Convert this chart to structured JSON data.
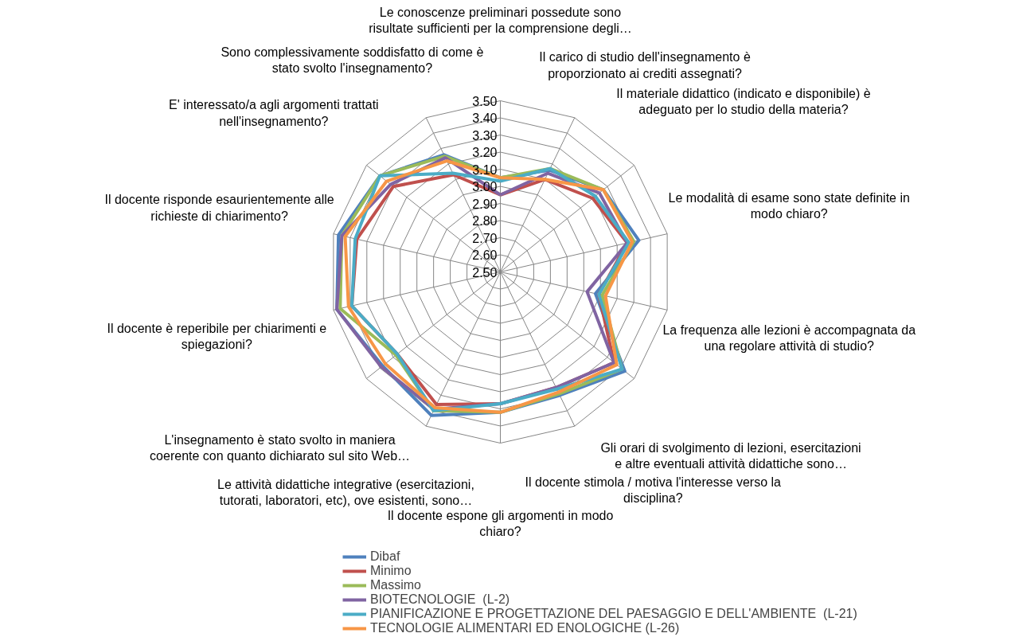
{
  "chart_data": {
    "type": "radar",
    "categories": [
      "Le conoscenze preliminari possedute sono\nrisultate sufficienti per la comprensione degli…",
      "Il carico di studio dell'insegnamento è\nproporzionato ai crediti assegnati?",
      "Il materiale didattico (indicato e disponibile) è\nadeguato per lo studio della materia?",
      "Le modalità di esame sono state definite in\nmodo chiaro?",
      "La frequenza alle lezioni è accompagnata da\nuna regolare attività di studio?",
      "Gli orari di svolgimento di lezioni, esercitazioni\ne altre eventuali attività didattiche sono…",
      "Il docente stimola / motiva l'interesse verso la\ndisciplina?",
      "Il docente espone gli argomenti in modo\nchiaro?",
      "Le attività didattiche integrative (esercitazioni,\ntutorati, laboratori, etc), ove esistenti, sono…",
      "L'insegnamento è stato svolto in maniera\ncoerente con quanto dichiarato sul sito Web…",
      "Il docente è reperibile per chiarimenti e\nspiegazioni?",
      "Il docente risponde esaurientemente alle\nrichieste di chiarimento?",
      "E' interessato/a agli argomenti trattati\nnell'insegnamento?",
      "Sono complessivamente soddisfatto di come è\nstato svolto l'insegnamento?"
    ],
    "series": [
      {
        "name": "Dibaf",
        "color": "#4f81bd",
        "values": [
          3.05,
          3.16,
          3.27,
          3.33,
          3.07,
          3.43,
          3.3,
          3.32,
          3.43,
          3.38,
          3.48,
          3.47,
          3.4,
          3.26
        ]
      },
      {
        "name": "Minimo",
        "color": "#c0504d",
        "values": [
          2.95,
          3.1,
          3.19,
          3.26,
          3.09,
          3.35,
          3.25,
          3.27,
          3.36,
          3.27,
          3.39,
          3.36,
          3.3,
          3.13
        ]
      },
      {
        "name": "Massimo",
        "color": "#9bbb59",
        "values": [
          3.05,
          3.17,
          3.27,
          3.3,
          3.11,
          3.41,
          3.29,
          3.32,
          3.4,
          3.28,
          3.46,
          3.45,
          3.4,
          3.25
        ]
      },
      {
        "name": "BIOTECNOLOGIE  (L-2)",
        "color": "#8064a2",
        "values": [
          2.95,
          3.14,
          3.24,
          3.26,
          3.02,
          3.35,
          3.25,
          3.27,
          3.39,
          3.39,
          3.48,
          3.45,
          3.32,
          3.24
        ]
      },
      {
        "name": "PIANIFICAZIONE E PROGETTAZIONE DEL PAESAGGIO E DELL'AMBIENTE  (L-21)",
        "color": "#4bacc6",
        "values": [
          3.03,
          3.17,
          3.21,
          3.27,
          3.09,
          3.41,
          3.26,
          3.27,
          3.4,
          3.27,
          3.39,
          3.37,
          3.4,
          3.14
        ]
      },
      {
        "name": "TECNOLOGIE ALIMENTARI ED ENOLOGICHE (L-26)",
        "color": "#f79646",
        "values": [
          3.05,
          3.1,
          3.27,
          3.29,
          3.13,
          3.37,
          3.28,
          3.32,
          3.38,
          3.36,
          3.41,
          3.43,
          3.35,
          3.22
        ]
      }
    ],
    "ylim": [
      2.5,
      3.5
    ],
    "yticks": [
      {
        "value": 2.5,
        "label": "2.50"
      },
      {
        "value": 2.6,
        "label": "2.60"
      },
      {
        "value": 2.7,
        "label": "2.70"
      },
      {
        "value": 2.8,
        "label": "2.80"
      },
      {
        "value": 2.9,
        "label": "2.90"
      },
      {
        "value": 3.0,
        "label": "3.00"
      },
      {
        "value": 3.1,
        "label": "3.10"
      },
      {
        "value": 3.2,
        "label": "3.20"
      },
      {
        "value": 3.3,
        "label": "3.30"
      },
      {
        "value": 3.4,
        "label": "3.40"
      },
      {
        "value": 3.5,
        "label": "3.50"
      }
    ],
    "grid": true,
    "legend": "bottom"
  }
}
